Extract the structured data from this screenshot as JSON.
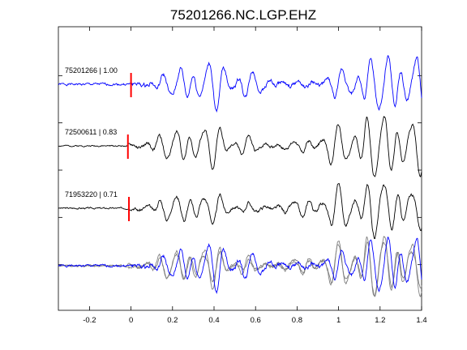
{
  "chart_data": {
    "type": "line",
    "title": "75201266.NC.LGP.EHZ",
    "xlabel": "",
    "ylabel": "",
    "xlim": [
      -0.35,
      1.4
    ],
    "xticks": [
      -0.2,
      0,
      0.2,
      0.4,
      0.6,
      0.8,
      1,
      1.2,
      1.4
    ],
    "xtick_labels": [
      "-0.2",
      "0",
      "0.2",
      "0.4",
      "0.6",
      "0.8",
      "1",
      "1.2",
      "1.4"
    ],
    "pick_time": 0,
    "traces": [
      {
        "label": "75201266 | 1.00",
        "color": "#0000ff",
        "pick_x": 0.0,
        "seed": 1,
        "noise": 0.09,
        "amp": 0.95,
        "phase": 0.0
      },
      {
        "label": "72500611 | 0.83",
        "color": "#000000",
        "pick_x": -0.015,
        "seed": 2,
        "noise": 0.05,
        "amp": 1.0,
        "phase": 0.35
      },
      {
        "label": "71953220 | 0.71",
        "color": "#000000",
        "pick_x": -0.01,
        "seed": 3,
        "noise": 0.06,
        "amp": 0.85,
        "phase": 0.7
      }
    ],
    "overlay": {
      "series": [
        {
          "color": "#808080",
          "source": 2
        },
        {
          "color": "#808080",
          "source": 3
        },
        {
          "color": "#0000ff",
          "source": 1
        }
      ]
    }
  }
}
